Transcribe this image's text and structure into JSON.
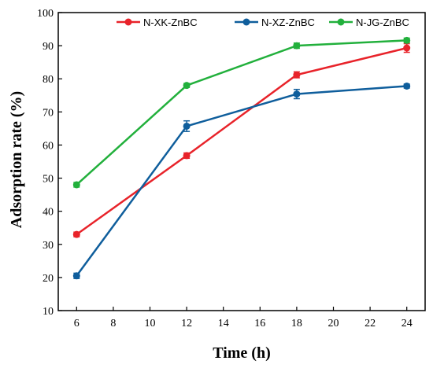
{
  "chart_data": {
    "type": "line",
    "xlabel": "Time (h)",
    "ylabel": "Adsorption rate (%)",
    "x": [
      6,
      12,
      18,
      24
    ],
    "xlim": [
      5,
      25
    ],
    "ylim": [
      10,
      100
    ],
    "xticks": [
      6,
      8,
      10,
      12,
      14,
      16,
      18,
      20,
      22,
      24
    ],
    "yticks": [
      10,
      20,
      30,
      40,
      50,
      60,
      70,
      80,
      90,
      100
    ],
    "grid": false,
    "legend_position": "top-right",
    "series": [
      {
        "name": "N-XK-ZnBC",
        "color": "#e8232a",
        "values": [
          33.0,
          56.8,
          81.2,
          89.3
        ],
        "errors": [
          0.7,
          0.8,
          0.9,
          1.3
        ]
      },
      {
        "name": "N-XZ-ZnBC",
        "color": "#0f5e9c",
        "values": [
          20.5,
          65.7,
          75.4,
          77.8
        ],
        "errors": [
          0.8,
          1.6,
          1.4,
          0.6
        ]
      },
      {
        "name": "N-JG-ZnBC",
        "color": "#22b03c",
        "values": [
          48.0,
          78.0,
          90.0,
          91.6
        ],
        "errors": [
          0.7,
          0.6,
          0.8,
          0.7
        ]
      }
    ]
  }
}
